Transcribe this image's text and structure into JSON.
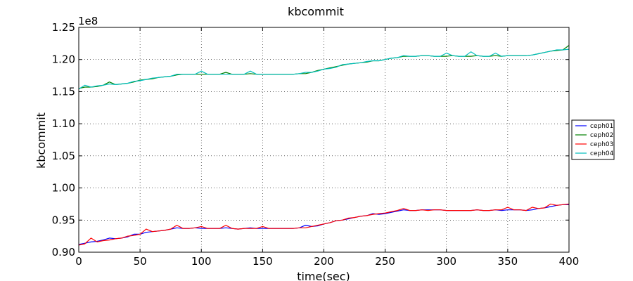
{
  "chart_data": {
    "type": "line",
    "title": "kbcommit",
    "xlabel": "time(sec)",
    "ylabel": "kbcommit",
    "y_multiplier": "1e8",
    "xlim": [
      0,
      400
    ],
    "ylim": [
      0.9,
      1.25
    ],
    "xticks": [
      0,
      50,
      100,
      150,
      200,
      250,
      300,
      350,
      400
    ],
    "xtick_labels": [
      "0",
      "50",
      "100",
      "150",
      "200",
      "250",
      "300",
      "350",
      "400"
    ],
    "yticks": [
      0.9,
      0.95,
      1.0,
      1.05,
      1.1,
      1.15,
      1.2,
      1.25
    ],
    "ytick_labels": [
      "0.90",
      "0.95",
      "1.00",
      "1.05",
      "1.10",
      "1.15",
      "1.20",
      "1.25"
    ],
    "grid": true,
    "legend_position": "right",
    "series": [
      {
        "name": "ceph01",
        "color": "#0000ff",
        "x": [
          0,
          5,
          10,
          15,
          20,
          25,
          30,
          35,
          40,
          45,
          50,
          55,
          60,
          65,
          70,
          75,
          80,
          85,
          90,
          95,
          100,
          105,
          110,
          115,
          120,
          125,
          130,
          135,
          140,
          145,
          150,
          155,
          160,
          165,
          170,
          175,
          180,
          185,
          190,
          195,
          200,
          205,
          210,
          215,
          220,
          225,
          230,
          235,
          240,
          245,
          250,
          255,
          260,
          265,
          270,
          275,
          280,
          285,
          290,
          295,
          300,
          305,
          310,
          315,
          320,
          325,
          330,
          335,
          340,
          345,
          350,
          355,
          360,
          365,
          370,
          375,
          380,
          385,
          390,
          395,
          400
        ],
        "y": [
          0.912,
          0.914,
          0.916,
          0.917,
          0.919,
          0.922,
          0.921,
          0.922,
          0.924,
          0.928,
          0.928,
          0.931,
          0.932,
          0.933,
          0.934,
          0.936,
          0.938,
          0.937,
          0.937,
          0.938,
          0.937,
          0.937,
          0.937,
          0.937,
          0.938,
          0.937,
          0.936,
          0.937,
          0.938,
          0.937,
          0.937,
          0.937,
          0.937,
          0.937,
          0.937,
          0.937,
          0.938,
          0.942,
          0.94,
          0.941,
          0.944,
          0.946,
          0.949,
          0.95,
          0.952,
          0.954,
          0.956,
          0.957,
          0.96,
          0.959,
          0.96,
          0.962,
          0.964,
          0.966,
          0.965,
          0.965,
          0.966,
          0.966,
          0.966,
          0.966,
          0.965,
          0.965,
          0.965,
          0.965,
          0.965,
          0.966,
          0.965,
          0.965,
          0.966,
          0.965,
          0.966,
          0.966,
          0.966,
          0.965,
          0.966,
          0.968,
          0.969,
          0.971,
          0.973,
          0.974,
          0.974
        ]
      },
      {
        "name": "ceph02",
        "color": "#008000",
        "x": [
          0,
          5,
          10,
          15,
          20,
          25,
          30,
          35,
          40,
          45,
          50,
          55,
          60,
          65,
          70,
          75,
          80,
          85,
          90,
          95,
          100,
          105,
          110,
          115,
          120,
          125,
          130,
          135,
          140,
          145,
          150,
          155,
          160,
          165,
          170,
          175,
          180,
          185,
          190,
          195,
          200,
          205,
          210,
          215,
          220,
          225,
          230,
          235,
          240,
          245,
          250,
          255,
          260,
          265,
          270,
          275,
          280,
          285,
          290,
          295,
          300,
          305,
          310,
          315,
          320,
          325,
          330,
          335,
          340,
          345,
          350,
          355,
          360,
          365,
          370,
          375,
          380,
          385,
          390,
          395,
          400
        ],
        "y": [
          1.155,
          1.157,
          1.157,
          1.158,
          1.16,
          1.165,
          1.161,
          1.162,
          1.163,
          1.165,
          1.168,
          1.169,
          1.17,
          1.172,
          1.173,
          1.174,
          1.176,
          1.177,
          1.177,
          1.177,
          1.177,
          1.177,
          1.177,
          1.177,
          1.18,
          1.177,
          1.177,
          1.177,
          1.178,
          1.177,
          1.177,
          1.177,
          1.177,
          1.177,
          1.177,
          1.177,
          1.178,
          1.178,
          1.18,
          1.183,
          1.185,
          1.187,
          1.189,
          1.191,
          1.193,
          1.194,
          1.195,
          1.196,
          1.198,
          1.198,
          1.2,
          1.202,
          1.203,
          1.205,
          1.205,
          1.205,
          1.206,
          1.206,
          1.205,
          1.205,
          1.205,
          1.206,
          1.205,
          1.205,
          1.205,
          1.206,
          1.205,
          1.205,
          1.206,
          1.205,
          1.206,
          1.206,
          1.206,
          1.206,
          1.207,
          1.209,
          1.211,
          1.213,
          1.214,
          1.215,
          1.222
        ]
      },
      {
        "name": "ceph03",
        "color": "#ff0000",
        "x": [
          0,
          5,
          10,
          15,
          20,
          25,
          30,
          35,
          40,
          45,
          50,
          55,
          60,
          65,
          70,
          75,
          80,
          85,
          90,
          95,
          100,
          105,
          110,
          115,
          120,
          125,
          130,
          135,
          140,
          145,
          150,
          155,
          160,
          165,
          170,
          175,
          180,
          185,
          190,
          195,
          200,
          205,
          210,
          215,
          220,
          225,
          230,
          235,
          240,
          245,
          250,
          255,
          260,
          265,
          270,
          275,
          280,
          285,
          290,
          295,
          300,
          305,
          310,
          315,
          320,
          325,
          330,
          335,
          340,
          345,
          350,
          355,
          360,
          365,
          370,
          375,
          380,
          385,
          390,
          395,
          400
        ],
        "y": [
          0.911,
          0.913,
          0.922,
          0.916,
          0.918,
          0.919,
          0.921,
          0.922,
          0.925,
          0.926,
          0.928,
          0.936,
          0.932,
          0.933,
          0.934,
          0.936,
          0.942,
          0.937,
          0.937,
          0.938,
          0.94,
          0.937,
          0.937,
          0.937,
          0.942,
          0.937,
          0.936,
          0.937,
          0.937,
          0.937,
          0.94,
          0.937,
          0.937,
          0.937,
          0.937,
          0.937,
          0.938,
          0.938,
          0.94,
          0.942,
          0.944,
          0.946,
          0.949,
          0.95,
          0.953,
          0.954,
          0.956,
          0.957,
          0.959,
          0.96,
          0.961,
          0.963,
          0.965,
          0.968,
          0.965,
          0.965,
          0.966,
          0.965,
          0.966,
          0.966,
          0.965,
          0.965,
          0.965,
          0.965,
          0.965,
          0.966,
          0.965,
          0.965,
          0.966,
          0.966,
          0.97,
          0.966,
          0.966,
          0.965,
          0.97,
          0.968,
          0.969,
          0.975,
          0.973,
          0.974,
          0.975
        ]
      },
      {
        "name": "ceph04",
        "color": "#00bfbf",
        "x": [
          0,
          5,
          10,
          15,
          20,
          25,
          30,
          35,
          40,
          45,
          50,
          55,
          60,
          65,
          70,
          75,
          80,
          85,
          90,
          95,
          100,
          105,
          110,
          115,
          120,
          125,
          130,
          135,
          140,
          145,
          150,
          155,
          160,
          165,
          170,
          175,
          180,
          185,
          190,
          195,
          200,
          205,
          210,
          215,
          220,
          225,
          230,
          235,
          240,
          245,
          250,
          255,
          260,
          265,
          270,
          275,
          280,
          285,
          290,
          295,
          300,
          305,
          310,
          315,
          320,
          325,
          330,
          335,
          340,
          345,
          350,
          355,
          360,
          365,
          370,
          375,
          380,
          385,
          390,
          395,
          400
        ],
        "y": [
          1.154,
          1.16,
          1.157,
          1.159,
          1.16,
          1.162,
          1.161,
          1.162,
          1.163,
          1.166,
          1.167,
          1.169,
          1.171,
          1.172,
          1.173,
          1.174,
          1.177,
          1.177,
          1.177,
          1.177,
          1.182,
          1.177,
          1.177,
          1.177,
          1.177,
          1.177,
          1.177,
          1.177,
          1.182,
          1.177,
          1.177,
          1.177,
          1.177,
          1.177,
          1.177,
          1.177,
          1.178,
          1.18,
          1.18,
          1.182,
          1.185,
          1.186,
          1.188,
          1.192,
          1.193,
          1.194,
          1.195,
          1.197,
          1.198,
          1.198,
          1.2,
          1.202,
          1.203,
          1.206,
          1.205,
          1.205,
          1.206,
          1.206,
          1.205,
          1.205,
          1.21,
          1.206,
          1.205,
          1.205,
          1.212,
          1.206,
          1.205,
          1.205,
          1.21,
          1.205,
          1.206,
          1.206,
          1.206,
          1.206,
          1.207,
          1.209,
          1.211,
          1.213,
          1.215,
          1.215,
          1.216
        ]
      }
    ]
  }
}
